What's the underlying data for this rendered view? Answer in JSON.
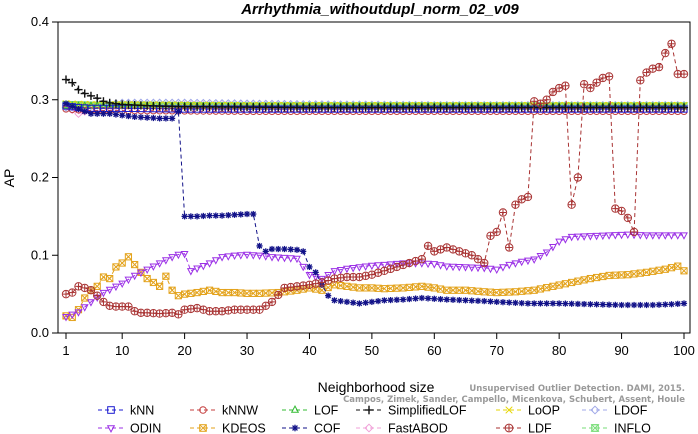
{
  "chart_data": {
    "type": "line",
    "title": "Arrhythmia_withoutdupl_norm_02_v09",
    "xlabel": "Neighborhood size",
    "ylabel": "AP",
    "xlim": [
      1,
      100
    ],
    "ylim": [
      0,
      0.4
    ],
    "x_ticks": [
      1,
      10,
      20,
      30,
      40,
      50,
      60,
      70,
      80,
      90,
      100
    ],
    "y_ticks": [
      0.0,
      0.1,
      0.2,
      0.3,
      0.4
    ],
    "grid": false,
    "legend_position": "bottom",
    "watermark": [
      "Unsupervised Outlier Detection. DAMI, 2015.",
      "Campos, Zimek, Sander, Campello, Micenkova, Schubert, Assent, Houle"
    ],
    "series": [
      {
        "name": "kNN",
        "color": "#1b1bd0",
        "marker": "square",
        "dash": "4,3",
        "points": [
          [
            1,
            0.292
          ],
          [
            3,
            0.29
          ],
          [
            5,
            0.289
          ],
          [
            10,
            0.289
          ],
          [
            20,
            0.288
          ],
          [
            40,
            0.288
          ],
          [
            60,
            0.288
          ],
          [
            80,
            0.288
          ],
          [
            100,
            0.288
          ]
        ]
      },
      {
        "name": "kNNW",
        "color": "#c43c3c",
        "marker": "circle",
        "dash": "4,3",
        "points": [
          [
            1,
            0.288
          ],
          [
            5,
            0.286
          ],
          [
            10,
            0.286
          ],
          [
            30,
            0.285
          ],
          [
            60,
            0.285
          ],
          [
            100,
            0.285
          ]
        ]
      },
      {
        "name": "LOF",
        "color": "#33bb33",
        "marker": "triangle",
        "dash": "4,3",
        "points": [
          [
            1,
            0.292
          ],
          [
            5,
            0.292
          ],
          [
            10,
            0.292
          ],
          [
            30,
            0.291
          ],
          [
            60,
            0.291
          ],
          [
            100,
            0.291
          ]
        ]
      },
      {
        "name": "SimplifiedLOF",
        "color": "#111111",
        "marker": "plus",
        "dash": "4,3",
        "points": [
          [
            1,
            0.326
          ],
          [
            2,
            0.322
          ],
          [
            3,
            0.313
          ],
          [
            4,
            0.308
          ],
          [
            5,
            0.305
          ],
          [
            6,
            0.302
          ],
          [
            7,
            0.298
          ],
          [
            8,
            0.296
          ],
          [
            10,
            0.294
          ],
          [
            15,
            0.292
          ],
          [
            20,
            0.291
          ],
          [
            40,
            0.29
          ],
          [
            70,
            0.29
          ],
          [
            100,
            0.29
          ]
        ]
      },
      {
        "name": "LoOP",
        "color": "#e6d600",
        "marker": "x",
        "dash": "4,3",
        "points": [
          [
            1,
            0.295
          ],
          [
            5,
            0.294
          ],
          [
            10,
            0.294
          ],
          [
            30,
            0.293
          ],
          [
            60,
            0.293
          ],
          [
            100,
            0.293
          ]
        ]
      },
      {
        "name": "LDOF",
        "color": "#a0a8e8",
        "marker": "diamond",
        "dash": "4,3",
        "points": [
          [
            1,
            0.29
          ],
          [
            5,
            0.292
          ],
          [
            10,
            0.296
          ],
          [
            20,
            0.296
          ],
          [
            40,
            0.294
          ],
          [
            60,
            0.293
          ],
          [
            80,
            0.293
          ],
          [
            100,
            0.293
          ]
        ]
      },
      {
        "name": "ODIN",
        "color": "#9b30e6",
        "marker": "triangle-down",
        "dash": "4,3",
        "points": [
          [
            1,
            0.021
          ],
          [
            3,
            0.027
          ],
          [
            5,
            0.04
          ],
          [
            7,
            0.052
          ],
          [
            10,
            0.064
          ],
          [
            12,
            0.074
          ],
          [
            14,
            0.082
          ],
          [
            16,
            0.09
          ],
          [
            18,
            0.098
          ],
          [
            19,
            0.101
          ],
          [
            20,
            0.102
          ],
          [
            21,
            0.08
          ],
          [
            24,
            0.09
          ],
          [
            26,
            0.098
          ],
          [
            28,
            0.1
          ],
          [
            30,
            0.101
          ],
          [
            32,
            0.1
          ],
          [
            34,
            0.098
          ],
          [
            36,
            0.097
          ],
          [
            38,
            0.096
          ],
          [
            40,
            0.075
          ],
          [
            42,
            0.07
          ],
          [
            44,
            0.08
          ],
          [
            46,
            0.083
          ],
          [
            48,
            0.085
          ],
          [
            50,
            0.087
          ],
          [
            52,
            0.088
          ],
          [
            55,
            0.09
          ],
          [
            58,
            0.09
          ],
          [
            60,
            0.089
          ],
          [
            62,
            0.086
          ],
          [
            65,
            0.085
          ],
          [
            68,
            0.084
          ],
          [
            70,
            0.082
          ],
          [
            72,
            0.088
          ],
          [
            74,
            0.092
          ],
          [
            76,
            0.095
          ],
          [
            78,
            0.104
          ],
          [
            80,
            0.118
          ],
          [
            82,
            0.124
          ],
          [
            85,
            0.125
          ],
          [
            88,
            0.126
          ],
          [
            91,
            0.127
          ],
          [
            94,
            0.126
          ],
          [
            97,
            0.126
          ],
          [
            100,
            0.126
          ]
        ]
      },
      {
        "name": "KDEOS",
        "color": "#e3a21a",
        "marker": "square-x",
        "dash": "4,3",
        "points": [
          [
            1,
            0.022
          ],
          [
            2,
            0.02
          ],
          [
            3,
            0.03
          ],
          [
            4,
            0.045
          ],
          [
            5,
            0.055
          ],
          [
            6,
            0.06
          ],
          [
            7,
            0.072
          ],
          [
            8,
            0.07
          ],
          [
            9,
            0.085
          ],
          [
            10,
            0.09
          ],
          [
            11,
            0.098
          ],
          [
            12,
            0.088
          ],
          [
            13,
            0.078
          ],
          [
            14,
            0.07
          ],
          [
            15,
            0.065
          ],
          [
            16,
            0.06
          ],
          [
            17,
            0.073
          ],
          [
            18,
            0.055
          ],
          [
            19,
            0.048
          ],
          [
            20,
            0.05
          ],
          [
            22,
            0.052
          ],
          [
            24,
            0.055
          ],
          [
            26,
            0.052
          ],
          [
            28,
            0.052
          ],
          [
            30,
            0.051
          ],
          [
            32,
            0.051
          ],
          [
            35,
            0.052
          ],
          [
            38,
            0.055
          ],
          [
            40,
            0.058
          ],
          [
            42,
            0.055
          ],
          [
            44,
            0.062
          ],
          [
            46,
            0.06
          ],
          [
            48,
            0.058
          ],
          [
            50,
            0.058
          ],
          [
            52,
            0.057
          ],
          [
            55,
            0.058
          ],
          [
            58,
            0.06
          ],
          [
            60,
            0.058
          ],
          [
            62,
            0.055
          ],
          [
            65,
            0.055
          ],
          [
            68,
            0.053
          ],
          [
            70,
            0.052
          ],
          [
            73,
            0.053
          ],
          [
            76,
            0.055
          ],
          [
            79,
            0.06
          ],
          [
            82,
            0.065
          ],
          [
            85,
            0.07
          ],
          [
            88,
            0.074
          ],
          [
            91,
            0.075
          ],
          [
            94,
            0.078
          ],
          [
            97,
            0.082
          ],
          [
            99,
            0.086
          ],
          [
            100,
            0.08
          ]
        ]
      },
      {
        "name": "COF",
        "color": "#111188",
        "marker": "asterisk",
        "dash": "4,3",
        "points": [
          [
            1,
            0.295
          ],
          [
            3,
            0.288
          ],
          [
            5,
            0.282
          ],
          [
            8,
            0.282
          ],
          [
            10,
            0.28
          ],
          [
            12,
            0.278
          ],
          [
            14,
            0.277
          ],
          [
            16,
            0.276
          ],
          [
            18,
            0.276
          ],
          [
            19,
            0.285
          ],
          [
            20,
            0.15
          ],
          [
            22,
            0.15
          ],
          [
            24,
            0.151
          ],
          [
            26,
            0.151
          ],
          [
            28,
            0.152
          ],
          [
            30,
            0.153
          ],
          [
            31,
            0.153
          ],
          [
            32,
            0.112
          ],
          [
            33,
            0.105
          ],
          [
            34,
            0.108
          ],
          [
            36,
            0.108
          ],
          [
            38,
            0.107
          ],
          [
            39,
            0.105
          ],
          [
            40,
            0.085
          ],
          [
            41,
            0.078
          ],
          [
            42,
            0.062
          ],
          [
            43,
            0.048
          ],
          [
            44,
            0.042
          ],
          [
            46,
            0.04
          ],
          [
            48,
            0.038
          ],
          [
            50,
            0.04
          ],
          [
            52,
            0.042
          ],
          [
            55,
            0.043
          ],
          [
            58,
            0.045
          ],
          [
            60,
            0.044
          ],
          [
            62,
            0.043
          ],
          [
            65,
            0.042
          ],
          [
            68,
            0.041
          ],
          [
            70,
            0.04
          ],
          [
            75,
            0.038
          ],
          [
            80,
            0.038
          ],
          [
            85,
            0.037
          ],
          [
            90,
            0.036
          ],
          [
            95,
            0.036
          ],
          [
            98,
            0.037
          ],
          [
            100,
            0.038
          ]
        ]
      },
      {
        "name": "FastABOD",
        "color": "#f0a0d8",
        "marker": "diamond",
        "dash": "4,3",
        "points": [
          [
            1,
            0.292
          ],
          [
            3,
            0.282
          ],
          [
            5,
            0.288
          ],
          [
            10,
            0.292
          ],
          [
            20,
            0.293
          ],
          [
            40,
            0.292
          ],
          [
            60,
            0.292
          ],
          [
            80,
            0.292
          ],
          [
            100,
            0.292
          ]
        ]
      },
      {
        "name": "LDF",
        "color": "#a83232",
        "marker": "circle-plus",
        "dash": "4,3",
        "points": [
          [
            1,
            0.05
          ],
          [
            2,
            0.052
          ],
          [
            3,
            0.06
          ],
          [
            4,
            0.058
          ],
          [
            5,
            0.055
          ],
          [
            6,
            0.048
          ],
          [
            7,
            0.04
          ],
          [
            8,
            0.035
          ],
          [
            9,
            0.034
          ],
          [
            10,
            0.034
          ],
          [
            11,
            0.034
          ],
          [
            12,
            0.028
          ],
          [
            13,
            0.026
          ],
          [
            14,
            0.026
          ],
          [
            16,
            0.025
          ],
          [
            18,
            0.026
          ],
          [
            19,
            0.024
          ],
          [
            20,
            0.03
          ],
          [
            22,
            0.032
          ],
          [
            24,
            0.028
          ],
          [
            26,
            0.028
          ],
          [
            28,
            0.03
          ],
          [
            30,
            0.03
          ],
          [
            32,
            0.03
          ],
          [
            34,
            0.04
          ],
          [
            36,
            0.058
          ],
          [
            38,
            0.06
          ],
          [
            40,
            0.062
          ],
          [
            42,
            0.065
          ],
          [
            44,
            0.07
          ],
          [
            46,
            0.072
          ],
          [
            48,
            0.072
          ],
          [
            50,
            0.075
          ],
          [
            52,
            0.08
          ],
          [
            54,
            0.085
          ],
          [
            56,
            0.09
          ],
          [
            58,
            0.095
          ],
          [
            59,
            0.112
          ],
          [
            60,
            0.105
          ],
          [
            62,
            0.11
          ],
          [
            64,
            0.105
          ],
          [
            66,
            0.1
          ],
          [
            67,
            0.095
          ],
          [
            68,
            0.09
          ],
          [
            69,
            0.125
          ],
          [
            70,
            0.13
          ],
          [
            71,
            0.155
          ],
          [
            72,
            0.11
          ],
          [
            73,
            0.165
          ],
          [
            74,
            0.172
          ],
          [
            75,
            0.175
          ],
          [
            76,
            0.298
          ],
          [
            77,
            0.295
          ],
          [
            78,
            0.3
          ],
          [
            79,
            0.31
          ],
          [
            80,
            0.315
          ],
          [
            81,
            0.318
          ],
          [
            82,
            0.165
          ],
          [
            83,
            0.2
          ],
          [
            84,
            0.32
          ],
          [
            85,
            0.315
          ],
          [
            86,
            0.322
          ],
          [
            87,
            0.328
          ],
          [
            88,
            0.33
          ],
          [
            89,
            0.16
          ],
          [
            90,
            0.157
          ],
          [
            91,
            0.148
          ],
          [
            92,
            0.13
          ],
          [
            93,
            0.325
          ],
          [
            94,
            0.335
          ],
          [
            95,
            0.34
          ],
          [
            96,
            0.342
          ],
          [
            97,
            0.36
          ],
          [
            98,
            0.372
          ],
          [
            99,
            0.333
          ],
          [
            100,
            0.333
          ]
        ]
      },
      {
        "name": "INFLO",
        "color": "#77dd77",
        "marker": "hourglass",
        "dash": "4,3",
        "points": [
          [
            1,
            0.294
          ],
          [
            5,
            0.293
          ],
          [
            10,
            0.293
          ],
          [
            30,
            0.292
          ],
          [
            60,
            0.292
          ],
          [
            100,
            0.292
          ]
        ]
      }
    ]
  }
}
